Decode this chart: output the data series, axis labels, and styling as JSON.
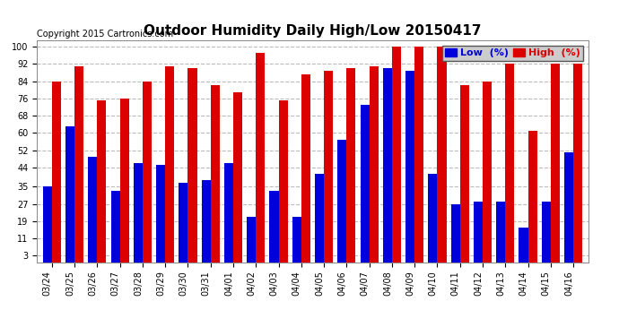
{
  "title": "Outdoor Humidity Daily High/Low 20150417",
  "copyright": "Copyright 2015 Cartronics.com",
  "legend_low": "Low  (%)",
  "legend_high": "High  (%)",
  "low_color": "#0000dd",
  "high_color": "#dd0000",
  "background_color": "#ffffff",
  "plot_bg_color": "#ffffff",
  "grid_color": "#bbbbbb",
  "dates": [
    "03/24",
    "03/25",
    "03/26",
    "03/27",
    "03/28",
    "03/29",
    "03/30",
    "03/31",
    "04/01",
    "04/02",
    "04/03",
    "04/04",
    "04/05",
    "04/06",
    "04/07",
    "04/08",
    "04/09",
    "04/10",
    "04/11",
    "04/12",
    "04/13",
    "04/14",
    "04/15",
    "04/16"
  ],
  "high_values": [
    84,
    91,
    75,
    76,
    84,
    91,
    90,
    82,
    79,
    97,
    75,
    87,
    89,
    90,
    91,
    100,
    100,
    100,
    82,
    84,
    92,
    61,
    92,
    92
  ],
  "low_values": [
    35,
    63,
    49,
    33,
    46,
    45,
    37,
    38,
    46,
    21,
    33,
    21,
    41,
    57,
    73,
    90,
    89,
    41,
    27,
    28,
    28,
    16,
    28,
    51
  ],
  "ylim": [
    0,
    103
  ],
  "yticks": [
    3,
    11,
    19,
    27,
    35,
    44,
    52,
    60,
    68,
    76,
    84,
    92,
    100
  ],
  "bar_width": 0.4,
  "title_fontsize": 11,
  "tick_fontsize": 7,
  "legend_fontsize": 8,
  "copyright_fontsize": 7
}
